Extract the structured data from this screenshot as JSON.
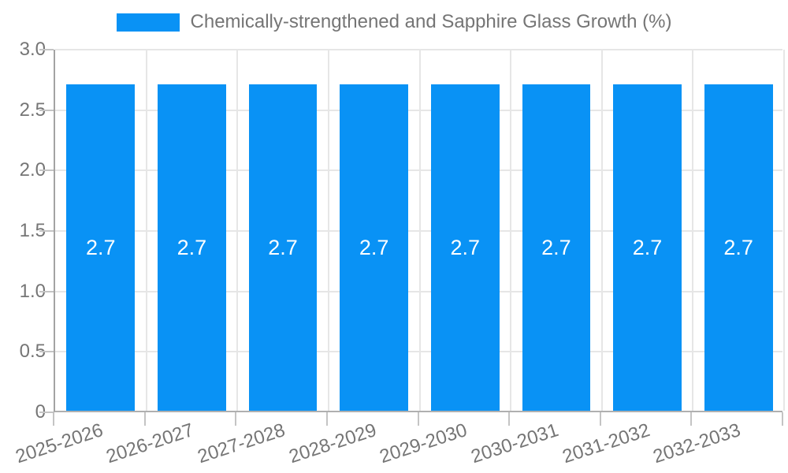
{
  "legend": {
    "label": "Chemically-strengthened and Sapphire Glass Growth (%)"
  },
  "chart_data": {
    "type": "bar",
    "title": "Chemically-strengthened and Sapphire Glass Growth (%)",
    "categories": [
      "2025-2026",
      "2026-2027",
      "2027-2028",
      "2028-2029",
      "2029-2030",
      "2030-2031",
      "2031-2032",
      "2032-2033"
    ],
    "values": [
      2.7,
      2.7,
      2.7,
      2.7,
      2.7,
      2.7,
      2.7,
      2.7
    ],
    "value_labels": [
      "2.7",
      "2.7",
      "2.7",
      "2.7",
      "2.7",
      "2.7",
      "2.7",
      "2.7"
    ],
    "xlabel": "",
    "ylabel": "",
    "ylim": [
      0,
      3.0
    ],
    "yticks": [
      0,
      0.5,
      1.0,
      1.5,
      2.0,
      2.5,
      3.0
    ],
    "ytick_labels": [
      "0",
      "0.5",
      "1.0",
      "1.5",
      "2.0",
      "2.5",
      "3.0"
    ],
    "grid": true,
    "legend_position": "top-center",
    "x_label_rotation_deg": -18,
    "colors": {
      "bar": "#0992f5",
      "value_label": "#ffffff",
      "axis_text": "#757575",
      "gridline": "#e6e6e6"
    }
  }
}
